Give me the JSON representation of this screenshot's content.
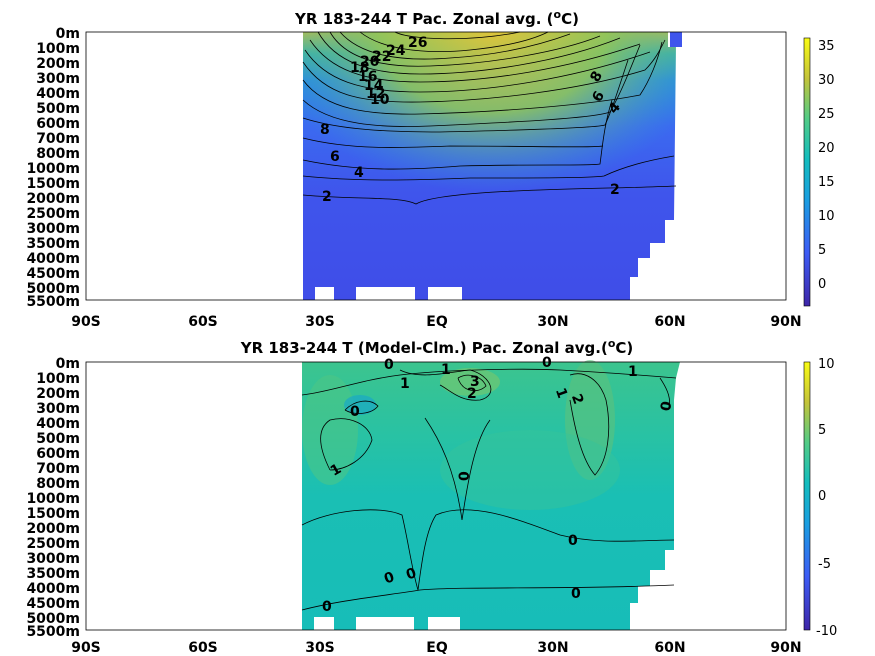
{
  "chart_data": [
    {
      "type": "heatmap",
      "title": "YR 183-244 T Pac. Zonal avg. (",
      "title_sup": "o",
      "title_end": "C)",
      "x_ticks": [
        "90S",
        "60S",
        "30S",
        "EQ",
        "30N",
        "60N",
        "90N"
      ],
      "y_ticks": [
        "0m",
        "100m",
        "200m",
        "300m",
        "400m",
        "500m",
        "600m",
        "700m",
        "800m",
        "1000m",
        "1500m",
        "2000m",
        "2500m",
        "3000m",
        "3500m",
        "4000m",
        "4500m",
        "5000m",
        "5500m"
      ],
      "xlim": [
        -90,
        90
      ],
      "colorbar": {
        "ticks": [
          "35",
          "30",
          "25",
          "20",
          "15",
          "10",
          "5",
          "0"
        ],
        "range": [
          -3,
          36
        ]
      },
      "contour_labels": [
        "26",
        "24",
        "22",
        "20",
        "18",
        "16",
        "14",
        "12",
        "10",
        "8",
        "6",
        "4",
        "2",
        "8",
        "6",
        "4",
        "2"
      ],
      "colors": {
        "warm": "#d9c43a",
        "mid": "#27a8b8",
        "cold": "#3f52e0"
      }
    },
    {
      "type": "heatmap",
      "title": "YR 183-244 T (Model-Clm.) Pac. Zonal avg.(",
      "title_sup": "o",
      "title_end": "C)",
      "x_ticks": [
        "90S",
        "60S",
        "30S",
        "EQ",
        "30N",
        "60N",
        "90N"
      ],
      "y_ticks": [
        "0m",
        "100m",
        "200m",
        "300m",
        "400m",
        "500m",
        "600m",
        "700m",
        "800m",
        "1000m",
        "1500m",
        "2000m",
        "2500m",
        "3000m",
        "3500m",
        "4000m",
        "4500m",
        "5000m",
        "5500m"
      ],
      "xlim": [
        -90,
        90
      ],
      "colorbar": {
        "ticks": [
          "10",
          "5",
          "0",
          "-5",
          "-10"
        ],
        "range": [
          -10,
          10
        ]
      },
      "contour_labels": [
        "0",
        "1",
        "1",
        "3",
        "2",
        "0",
        "1",
        "2",
        "1",
        "0",
        "0",
        "1",
        "0",
        "0",
        "0",
        "0",
        "0"
      ],
      "colors": {
        "base": "#18bfb8",
        "warm": "#5ec785",
        "cool": "#1aa9c4"
      }
    }
  ]
}
